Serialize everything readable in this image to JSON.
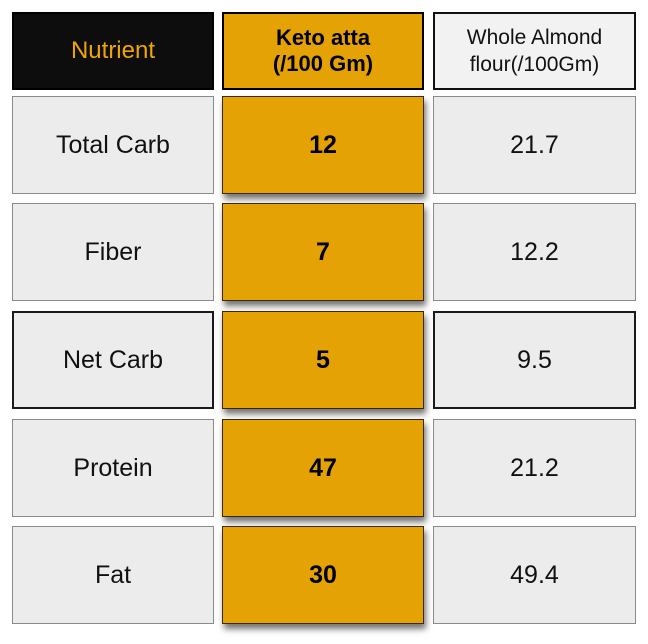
{
  "header": {
    "nutrient": "Nutrient",
    "keto_line1": "Keto atta",
    "keto_line2": "(/100 Gm)",
    "almond_line1": "Whole Almond",
    "almond_line2": "flour(/100Gm)"
  },
  "rows": [
    {
      "nutrient": "Total Carb",
      "keto": "12",
      "almond": "21.7"
    },
    {
      "nutrient": "Fiber",
      "keto": "7",
      "almond": "12.2"
    },
    {
      "nutrient": "Net Carb",
      "keto": "5",
      "almond": "9.5"
    },
    {
      "nutrient": "Protein",
      "keto": "47",
      "almond": "21.2"
    },
    {
      "nutrient": "Fat",
      "keto": "30",
      "almond": "49.4"
    }
  ],
  "colors": {
    "keto_fill": "#e4a205",
    "header_dark": "#0d0d0d",
    "header_text_accent": "#f0a500",
    "cell_gray": "#ececec"
  }
}
